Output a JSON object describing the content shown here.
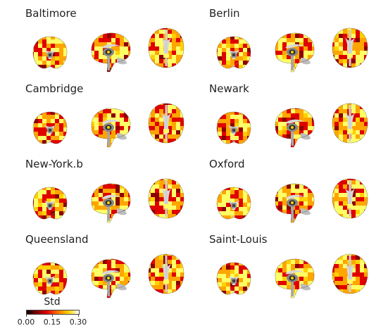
{
  "panels": [
    {
      "name": "Baltimore",
      "variant": 1
    },
    {
      "name": "Berlin",
      "variant": 2
    },
    {
      "name": "Cambridge",
      "variant": 3
    },
    {
      "name": "Newark",
      "variant": 4
    },
    {
      "name": "New-York.b",
      "variant": 5
    },
    {
      "name": "Oxford",
      "variant": 6
    },
    {
      "name": "Queensland",
      "variant": 7
    },
    {
      "name": "Saint-Louis",
      "variant": 8
    }
  ],
  "colorbar": {
    "title": "Std",
    "ticks": [
      "0.00",
      "0.15",
      "0.30"
    ],
    "range": [
      0.0,
      0.3
    ],
    "colormap": "hot"
  },
  "colors": {
    "high": "#ffff66",
    "mid": "#ffa500",
    "low": "#e00000",
    "lowest": "#8b0000",
    "tissue": "#d8d8d8"
  }
}
